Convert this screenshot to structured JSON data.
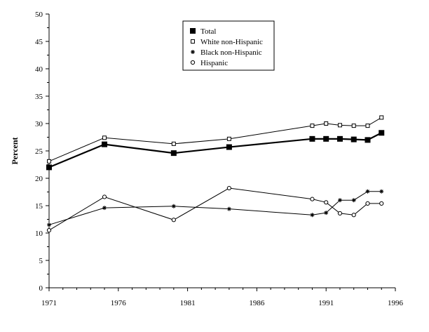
{
  "chart_data": {
    "type": "line",
    "title": "",
    "xlabel": "",
    "ylabel": "Percent",
    "xlim": [
      1971,
      1996
    ],
    "ylim": [
      0,
      50
    ],
    "xticks": [
      1971,
      1976,
      1981,
      1986,
      1991,
      1996
    ],
    "yticks": [
      0,
      5,
      10,
      15,
      20,
      25,
      30,
      35,
      40,
      45,
      50
    ],
    "legend_position": "top-center",
    "grid": false,
    "series": [
      {
        "name": "Total",
        "marker": "filled-square",
        "color": "#000000",
        "x": [
          1971,
          1975,
          1980,
          1984,
          1990,
          1991,
          1992,
          1993,
          1994,
          1995
        ],
        "y": [
          22.0,
          26.2,
          24.6,
          25.7,
          27.2,
          27.2,
          27.2,
          27.1,
          27.0,
          28.3
        ]
      },
      {
        "name": "White non-Hispanic",
        "marker": "open-square",
        "color": "#000000",
        "x": [
          1971,
          1975,
          1980,
          1984,
          1990,
          1991,
          1992,
          1993,
          1994,
          1995
        ],
        "y": [
          23.1,
          27.4,
          26.3,
          27.2,
          29.6,
          30.0,
          29.7,
          29.6,
          29.6,
          31.1
        ]
      },
      {
        "name": "Black non-Hispanic",
        "marker": "star",
        "color": "#000000",
        "x": [
          1971,
          1975,
          1980,
          1984,
          1990,
          1991,
          1992,
          1993,
          1994,
          1995
        ],
        "y": [
          11.5,
          14.6,
          14.9,
          14.4,
          13.3,
          13.7,
          16.0,
          16.0,
          17.6,
          17.6
        ]
      },
      {
        "name": "Hispanic",
        "marker": "open-circle",
        "color": "#000000",
        "x": [
          1971,
          1975,
          1980,
          1984,
          1990,
          1991,
          1992,
          1993,
          1994,
          1995
        ],
        "y": [
          10.5,
          16.6,
          12.4,
          18.2,
          16.2,
          15.6,
          13.6,
          13.3,
          15.4,
          15.4
        ]
      }
    ]
  }
}
